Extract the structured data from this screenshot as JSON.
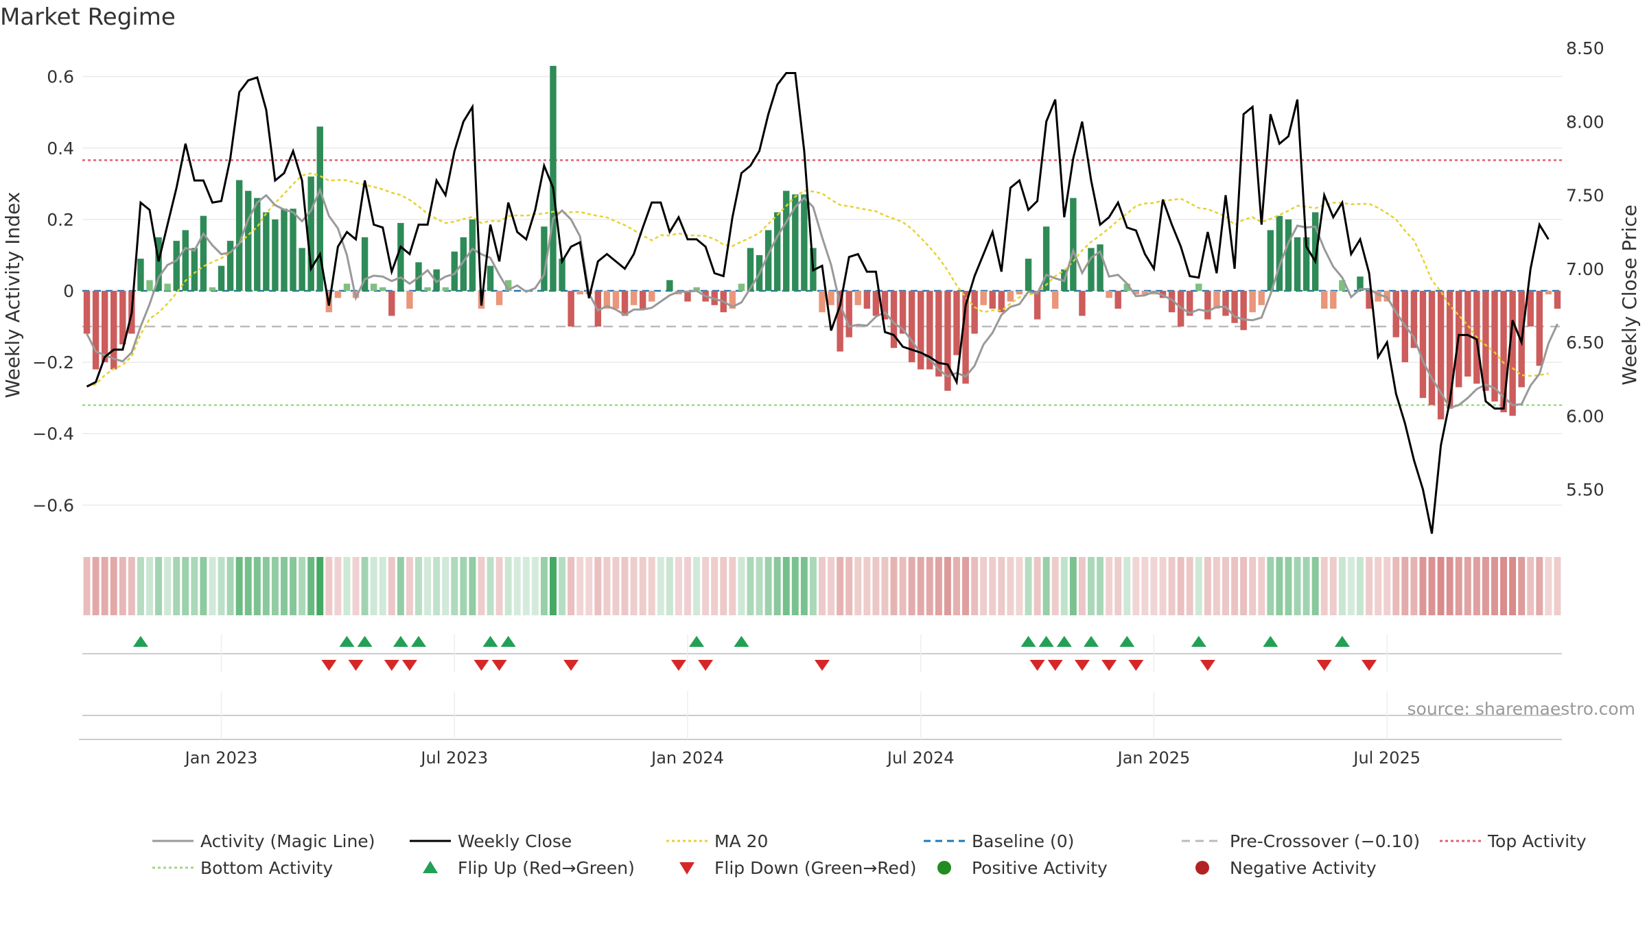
{
  "chart_data": {
    "type": "bar",
    "title": "Market Regime",
    "source": "source: sharemaestro.com",
    "ylabel_left": "Weekly Activity Index",
    "ylabel_right": "Weekly Close Price",
    "ylim_left": [
      -0.68,
      0.68
    ],
    "ylim_right": [
      5.2,
      8.5
    ],
    "y_ticks_left": [
      {
        "value": 0.6,
        "label": "0.6"
      },
      {
        "value": 0.4,
        "label": "0.4"
      },
      {
        "value": 0.2,
        "label": "0.2"
      },
      {
        "value": 0,
        "label": "0"
      },
      {
        "value": -0.2,
        "label": "−0.2"
      },
      {
        "value": -0.4,
        "label": "−0.4"
      },
      {
        "value": -0.6,
        "label": "−0.6"
      }
    ],
    "y_ticks_right": [
      {
        "value": 8.5,
        "label": "8.50"
      },
      {
        "value": 8.0,
        "label": "8.00"
      },
      {
        "value": 7.5,
        "label": "7.50"
      },
      {
        "value": 7.0,
        "label": "7.00"
      },
      {
        "value": 6.5,
        "label": "6.50"
      },
      {
        "value": 6.0,
        "label": "6.00"
      },
      {
        "value": 5.5,
        "label": "5.50"
      }
    ],
    "x_ticks": [
      {
        "week": 15,
        "label": "Jan 2023"
      },
      {
        "week": 41,
        "label": "Jul 2023"
      },
      {
        "week": 67,
        "label": "Jan 2024"
      },
      {
        "week": 93,
        "label": "Jul 2024"
      },
      {
        "week": 119,
        "label": "Jan 2025"
      },
      {
        "week": 145,
        "label": "Jul 2025"
      }
    ],
    "reference_lines": {
      "baseline": 0,
      "pre_crossover": -0.1,
      "top_activity": 0.366,
      "bottom_activity": -0.32
    },
    "colors": {
      "pos_strong": "#2e8b57",
      "pos_light": "#7fbf7f",
      "neg_strong": "#cd5c5c",
      "neg_light": "#e9967a",
      "close": "#000000",
      "magic": "#999999",
      "ma20": "#e6d230",
      "baseline": "#1f77b4",
      "pre": "#bbbbbb",
      "top": "#e06070",
      "bottom": "#9fd880",
      "flip_up": "#22a055",
      "flip_down": "#d62728",
      "pos_dot": "#228b22",
      "neg_dot": "#b22222"
    },
    "series": {
      "activity": [
        -0.12,
        -0.22,
        -0.2,
        -0.22,
        -0.15,
        -0.12,
        0.09,
        0.03,
        0.15,
        0.02,
        0.14,
        0.17,
        0.12,
        0.21,
        0.01,
        0.07,
        0.14,
        0.31,
        0.28,
        0.26,
        0.22,
        0.2,
        0.23,
        0.23,
        0.12,
        0.32,
        0.46,
        -0.06,
        -0.02,
        0.02,
        -0.02,
        0.15,
        0.02,
        0.01,
        -0.07,
        0.19,
        -0.05,
        0.08,
        0.01,
        0.06,
        0.01,
        0.11,
        0.15,
        0.2,
        -0.05,
        0.07,
        -0.04,
        0.03,
        0.0,
        0.0,
        0.0,
        0.18,
        0.63,
        0.09,
        -0.1,
        -0.01,
        -0.01,
        -0.1,
        -0.05,
        -0.05,
        -0.07,
        -0.04,
        -0.05,
        -0.03,
        0.0,
        0.03,
        -0.01,
        -0.03,
        0.01,
        -0.03,
        -0.04,
        -0.06,
        -0.05,
        0.02,
        0.12,
        0.1,
        0.17,
        0.22,
        0.28,
        0.27,
        0.27,
        0.12,
        -0.06,
        -0.04,
        -0.17,
        -0.13,
        -0.04,
        -0.05,
        -0.07,
        -0.08,
        -0.16,
        -0.12,
        -0.2,
        -0.22,
        -0.22,
        -0.24,
        -0.28,
        -0.18,
        -0.26,
        -0.12,
        -0.04,
        -0.05,
        -0.06,
        -0.03,
        -0.01,
        0.09,
        -0.08,
        0.18,
        -0.05,
        0.06,
        0.26,
        -0.07,
        0.12,
        0.13,
        -0.02,
        -0.05,
        0.02,
        -0.01,
        -0.01,
        -0.01,
        -0.02,
        -0.06,
        -0.1,
        -0.07,
        0.02,
        -0.08,
        -0.05,
        -0.07,
        -0.09,
        -0.11,
        -0.06,
        -0.04,
        0.17,
        0.21,
        0.2,
        0.15,
        0.15,
        0.22,
        -0.05,
        -0.05,
        0.03,
        0.0,
        0.04,
        -0.05,
        -0.03,
        -0.03,
        -0.13,
        -0.2,
        -0.16,
        -0.3,
        -0.32,
        -0.36,
        -0.33,
        -0.27,
        -0.24,
        -0.26,
        -0.28,
        -0.31,
        -0.34,
        -0.35,
        -0.27,
        -0.1,
        -0.21,
        -0.01,
        -0.05
      ],
      "close": [
        6.2,
        6.23,
        6.4,
        6.45,
        6.45,
        6.7,
        7.45,
        7.4,
        7.05,
        7.3,
        7.55,
        7.85,
        7.6,
        7.6,
        7.45,
        7.46,
        7.75,
        8.2,
        8.28,
        8.3,
        8.08,
        7.6,
        7.65,
        7.8,
        7.6,
        7.0,
        7.1,
        6.75,
        7.15,
        7.25,
        7.2,
        7.6,
        7.3,
        7.28,
        6.98,
        7.15,
        7.1,
        7.3,
        7.3,
        7.6,
        7.5,
        7.8,
        8.0,
        8.1,
        6.75,
        7.3,
        7.05,
        7.45,
        7.25,
        7.2,
        7.4,
        7.7,
        7.55,
        7.05,
        7.15,
        7.18,
        6.8,
        7.05,
        7.1,
        7.05,
        7.0,
        7.1,
        7.28,
        7.45,
        7.45,
        7.25,
        7.35,
        7.2,
        7.2,
        7.15,
        6.97,
        6.95,
        7.35,
        7.65,
        7.7,
        7.8,
        8.05,
        8.25,
        8.33,
        8.33,
        7.8,
        6.99,
        7.02,
        6.58,
        6.75,
        7.08,
        7.1,
        6.98,
        6.98,
        6.57,
        6.55,
        6.47,
        6.45,
        6.43,
        6.4,
        6.36,
        6.35,
        6.23,
        6.75,
        6.95,
        7.1,
        7.25,
        6.98,
        7.55,
        7.6,
        7.4,
        7.46,
        8.0,
        8.15,
        7.35,
        7.75,
        8.0,
        7.6,
        7.3,
        7.35,
        7.45,
        7.28,
        7.26,
        7.1,
        7.0,
        7.47,
        7.3,
        7.15,
        6.95,
        6.94,
        7.25,
        6.97,
        7.5,
        7.0,
        8.05,
        8.1,
        7.3,
        8.05,
        7.85,
        7.9,
        8.15,
        7.15,
        7.05,
        7.5,
        7.35,
        7.45,
        7.1,
        7.2,
        6.97,
        6.4,
        6.5,
        6.15,
        5.95,
        5.7,
        5.5,
        5.2,
        5.8,
        6.1,
        6.55,
        6.55,
        6.52,
        6.1,
        6.05,
        6.05,
        6.65,
        6.5,
        7.0,
        7.3,
        7.2
      ]
    },
    "legend": [
      {
        "label": "Activity (Magic Line)",
        "kind": "line",
        "color": "#999999",
        "dash": ""
      },
      {
        "label": "Weekly Close",
        "kind": "line",
        "color": "#000000",
        "dash": ""
      },
      {
        "label": "MA 20",
        "kind": "line",
        "color": "#e6d230",
        "dash": "4 4"
      },
      {
        "label": "Baseline (0)",
        "kind": "line",
        "color": "#1f77b4",
        "dash": "10 7"
      },
      {
        "label": "Pre-Crossover (−0.10)",
        "kind": "line",
        "color": "#bbbbbb",
        "dash": "12 8"
      },
      {
        "label": "Top Activity",
        "kind": "line",
        "color": "#e06070",
        "dash": "4 4"
      },
      {
        "label": "Bottom Activity",
        "kind": "line",
        "color": "#9fd880",
        "dash": "4 4"
      },
      {
        "label": "Flip Up (Red→Green)",
        "kind": "tri-up",
        "color": "#22a055"
      },
      {
        "label": "Flip Down (Green→Red)",
        "kind": "tri-down",
        "color": "#d62728"
      },
      {
        "label": "Positive Activity",
        "kind": "dot",
        "color": "#228b22"
      },
      {
        "label": "Negative Activity",
        "kind": "dot",
        "color": "#b22222"
      }
    ]
  }
}
